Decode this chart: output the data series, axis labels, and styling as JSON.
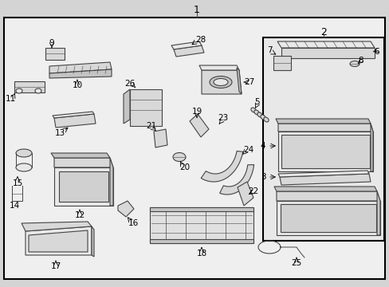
{
  "bg_color": "#d4d4d4",
  "border_color": "#000000",
  "line_color": "#000000",
  "part_color": "#ffffff",
  "sketch_color": "#444444",
  "fill_light": "#e8e8e8",
  "fill_mid": "#d8d8d8",
  "fill_dark": "#c4c4c4"
}
